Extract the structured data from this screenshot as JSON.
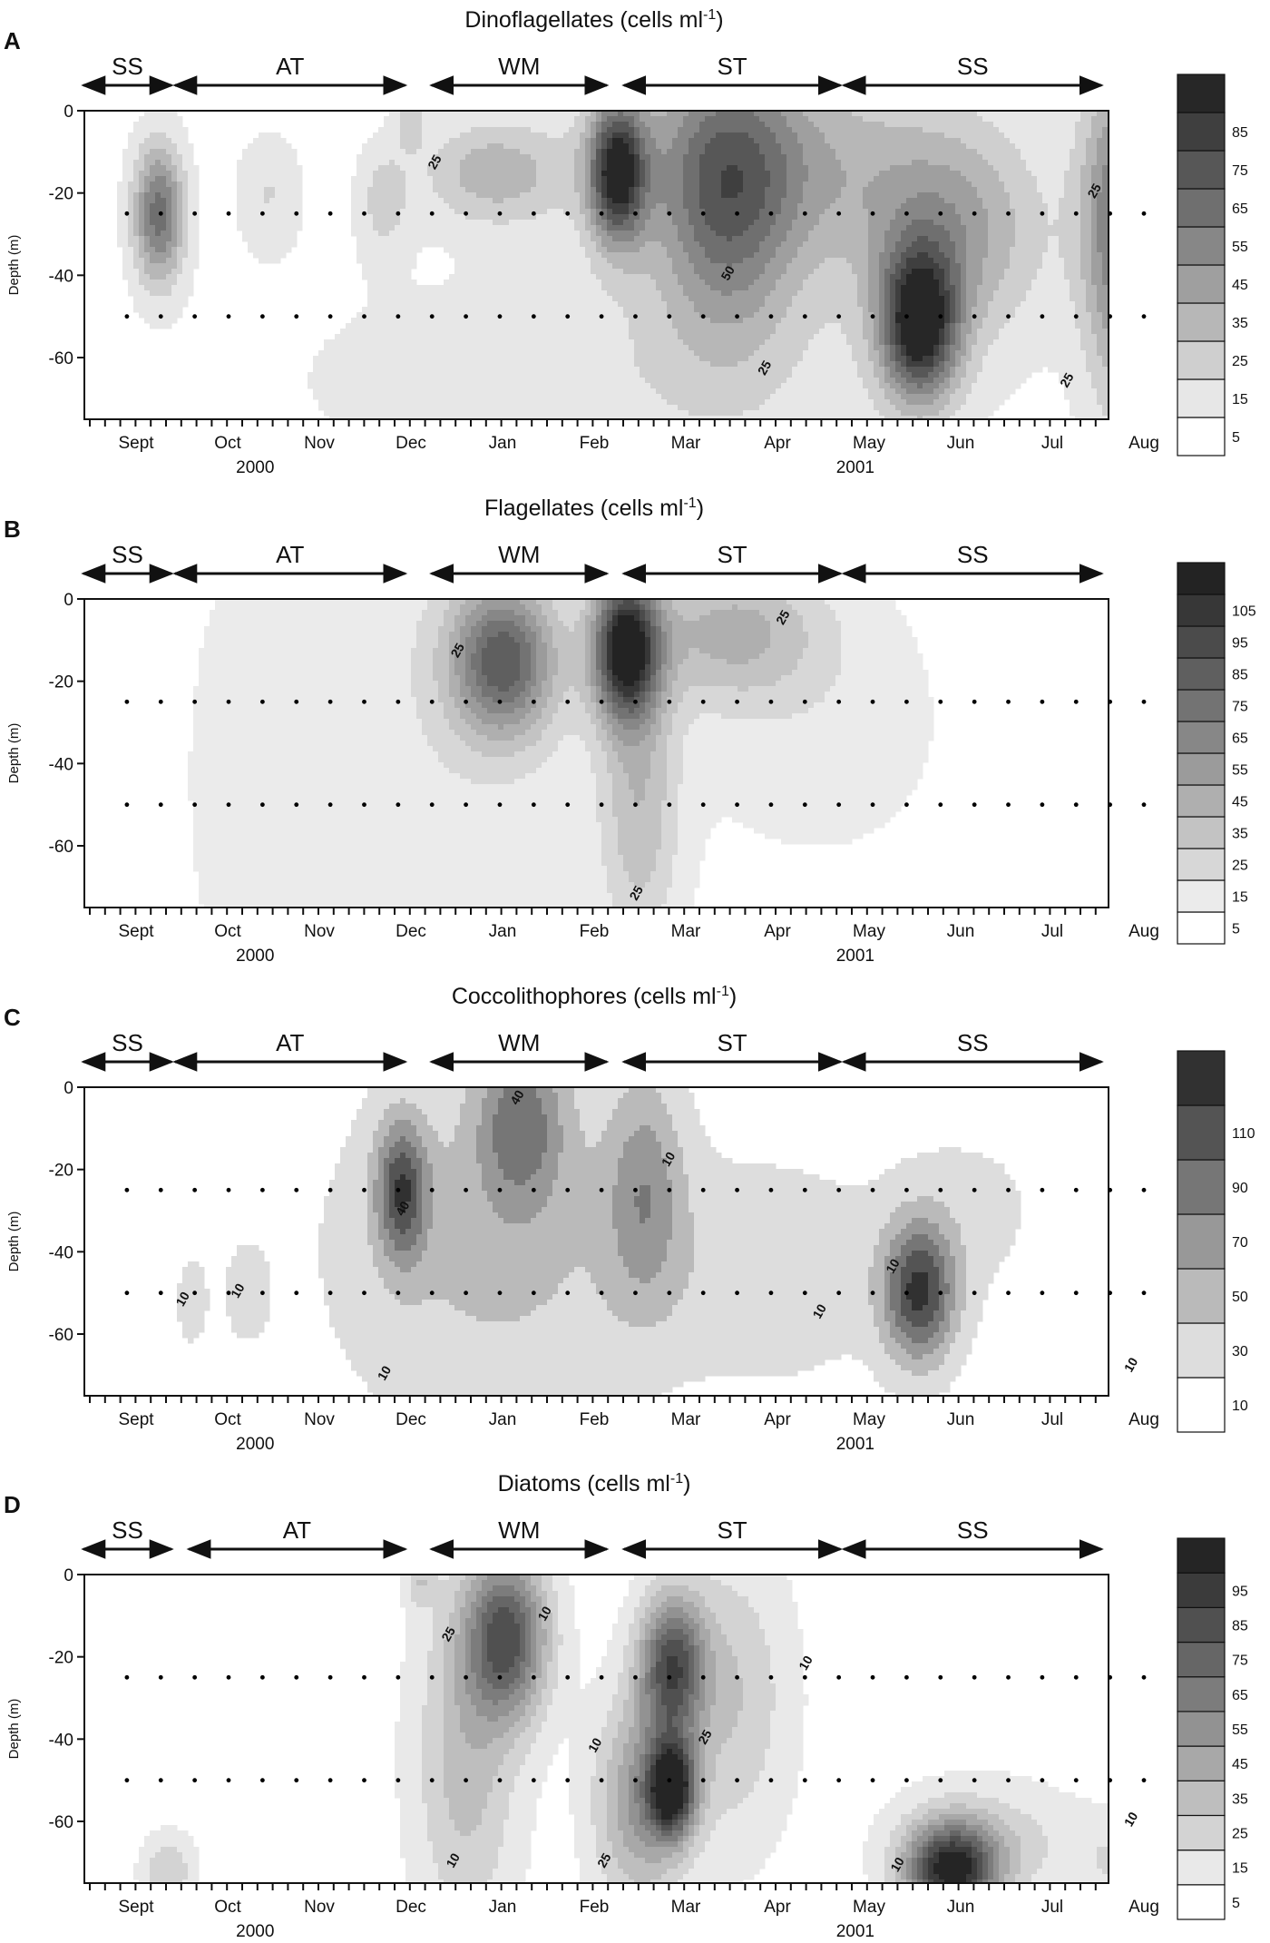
{
  "chart_data": [
    {
      "panel_letter": "A",
      "type": "heatmap",
      "title": "Dinoflagellates (cells ml",
      "title_sup": "-1",
      "title_end": ")",
      "ylabel": "Depth (m)",
      "ylim": [
        -75,
        0
      ],
      "y_ticks": [
        "0",
        "-20",
        "-40",
        "-60"
      ],
      "months": [
        "Sept",
        "Oct",
        "Nov",
        "Dec",
        "Jan",
        "Feb",
        "Mar",
        "Apr",
        "May",
        "Jun",
        "Jul",
        "Aug"
      ],
      "years": [
        "2000",
        "2001"
      ],
      "seasons": [
        {
          "label": "SS",
          "start": 0.0,
          "end": 1.0
        },
        {
          "label": "AT",
          "start": 1.0,
          "end": 3.55
        },
        {
          "label": "WM",
          "start": 3.8,
          "end": 5.75
        },
        {
          "label": "ST",
          "start": 5.9,
          "end": 8.3
        },
        {
          "label": "SS",
          "start": 8.3,
          "end": 11.15
        }
      ],
      "legend_levels": [
        "5",
        "15",
        "25",
        "35",
        "45",
        "55",
        "65",
        "75",
        "85"
      ],
      "legend_max": 95,
      "contour_labels": [
        {
          "text": "25",
          "x": 3.3,
          "y": -13
        },
        {
          "text": "50",
          "x": 6.5,
          "y": -40
        },
        {
          "text": "25",
          "x": 6.9,
          "y": -63
        },
        {
          "text": "25",
          "x": 10.2,
          "y": -66
        },
        {
          "text": "25",
          "x": 10.5,
          "y": -20
        }
      ],
      "sample_depths": [
        -25,
        -50
      ],
      "hotspots": [
        {
          "x": 0.25,
          "y": -25,
          "v": 60,
          "sx": 0.2,
          "sy": 12
        },
        {
          "x": 1.45,
          "y": -20,
          "v": 15,
          "sx": 0.25,
          "sy": 10
        },
        {
          "x": 2.7,
          "y": -22,
          "v": 18,
          "sx": 0.2,
          "sy": 10
        },
        {
          "x": 3.0,
          "y": -2,
          "v": 20,
          "sx": 0.12,
          "sy": 5
        },
        {
          "x": 3.9,
          "y": -15,
          "v": 30,
          "sx": 0.55,
          "sy": 9
        },
        {
          "x": 5.25,
          "y": -15,
          "v": 85,
          "sx": 0.22,
          "sy": 12
        },
        {
          "x": 6.45,
          "y": -22,
          "v": 50,
          "sx": 0.55,
          "sy": 25
        },
        {
          "x": 7.0,
          "y": -12,
          "v": 30,
          "sx": 1.3,
          "sy": 18
        },
        {
          "x": 8.55,
          "y": -52,
          "v": 90,
          "sx": 0.3,
          "sy": 13
        },
        {
          "x": 8.9,
          "y": -30,
          "v": 35,
          "sx": 0.7,
          "sy": 18
        },
        {
          "x": 10.7,
          "y": -25,
          "v": 40,
          "sx": 0.3,
          "sy": 25
        },
        {
          "x": 11.0,
          "y": -40,
          "v": 30,
          "sx": 0.35,
          "sy": 35
        },
        {
          "x": 5.2,
          "y": -65,
          "v": 12,
          "sx": 2.5,
          "sy": 20
        }
      ]
    },
    {
      "panel_letter": "B",
      "type": "heatmap",
      "title": "Flagellates (cells ml",
      "title_sup": "-1",
      "title_end": ")",
      "ylabel": "Depth (m)",
      "ylim": [
        -75,
        0
      ],
      "y_ticks": [
        "0",
        "-20",
        "-40",
        "-60"
      ],
      "months": [
        "Sept",
        "Oct",
        "Nov",
        "Dec",
        "Jan",
        "Feb",
        "Mar",
        "Apr",
        "May",
        "Jun",
        "Jul",
        "Aug"
      ],
      "years": [
        "2000",
        "2001"
      ],
      "seasons": [
        {
          "label": "SS",
          "start": 0.0,
          "end": 1.0
        },
        {
          "label": "AT",
          "start": 1.0,
          "end": 3.55
        },
        {
          "label": "WM",
          "start": 3.8,
          "end": 5.75
        },
        {
          "label": "ST",
          "start": 5.9,
          "end": 8.3
        },
        {
          "label": "SS",
          "start": 8.3,
          "end": 11.15
        }
      ],
      "legend_levels": [
        "5",
        "15",
        "25",
        "35",
        "45",
        "55",
        "65",
        "75",
        "85",
        "95",
        "105"
      ],
      "legend_max": 115,
      "contour_labels": [
        {
          "text": "25",
          "x": 3.55,
          "y": -13
        },
        {
          "text": "25",
          "x": 5.5,
          "y": -72
        },
        {
          "text": "25",
          "x": 7.1,
          "y": -5
        }
      ],
      "sample_depths": [
        -25,
        -50
      ],
      "hotspots": [
        {
          "x": 4.0,
          "y": -15,
          "v": 75,
          "sx": 0.4,
          "sy": 13
        },
        {
          "x": 5.35,
          "y": -12,
          "v": 110,
          "sx": 0.25,
          "sy": 12
        },
        {
          "x": 5.5,
          "y": -50,
          "v": 30,
          "sx": 0.3,
          "sy": 25
        },
        {
          "x": 6.5,
          "y": -8,
          "v": 35,
          "sx": 0.7,
          "sy": 12
        },
        {
          "x": 3.2,
          "y": -30,
          "v": 12,
          "sx": 1.5,
          "sy": 50
        },
        {
          "x": 1.2,
          "y": -50,
          "v": 8,
          "sx": 0.4,
          "sy": 35
        },
        {
          "x": 7.5,
          "y": -30,
          "v": 10,
          "sx": 1.0,
          "sy": 25
        }
      ]
    },
    {
      "panel_letter": "C",
      "type": "heatmap",
      "title": "Coccolithophores (cells ml",
      "title_sup": "-1",
      "title_end": ")",
      "ylabel": "Depth (m)",
      "ylim": [
        -75,
        0
      ],
      "y_ticks": [
        "0",
        "-20",
        "-40",
        "-60"
      ],
      "months": [
        "Sept",
        "Oct",
        "Nov",
        "Dec",
        "Jan",
        "Feb",
        "Mar",
        "Apr",
        "May",
        "Jun",
        "Jul",
        "Aug"
      ],
      "years": [
        "2000",
        "2001"
      ],
      "seasons": [
        {
          "label": "SS",
          "start": 0.0,
          "end": 1.0
        },
        {
          "label": "AT",
          "start": 1.0,
          "end": 3.55
        },
        {
          "label": "WM",
          "start": 3.8,
          "end": 5.75
        },
        {
          "label": "ST",
          "start": 5.9,
          "end": 8.3
        },
        {
          "label": "SS",
          "start": 8.3,
          "end": 11.15
        }
      ],
      "legend_levels": [
        "10",
        "30",
        "50",
        "70",
        "90",
        "110"
      ],
      "legend_max": 130,
      "contour_labels": [
        {
          "text": "10",
          "x": 0.55,
          "y": -52
        },
        {
          "text": "10",
          "x": 1.15,
          "y": -50
        },
        {
          "text": "10",
          "x": 2.75,
          "y": -70
        },
        {
          "text": "40",
          "x": 2.95,
          "y": -30
        },
        {
          "text": "40",
          "x": 4.2,
          "y": -3
        },
        {
          "text": "10",
          "x": 5.85,
          "y": -18
        },
        {
          "text": "10",
          "x": 7.5,
          "y": -55
        },
        {
          "text": "10",
          "x": 8.3,
          "y": -44
        },
        {
          "text": "10",
          "x": 10.9,
          "y": -68
        }
      ],
      "sample_depths": [
        -25,
        -50
      ],
      "hotspots": [
        {
          "x": 2.9,
          "y": -25,
          "v": 95,
          "sx": 0.2,
          "sy": 12
        },
        {
          "x": 4.2,
          "y": -8,
          "v": 70,
          "sx": 0.35,
          "sy": 15
        },
        {
          "x": 3.9,
          "y": -40,
          "v": 35,
          "sx": 1.2,
          "sy": 30
        },
        {
          "x": 5.55,
          "y": -25,
          "v": 55,
          "sx": 0.3,
          "sy": 20
        },
        {
          "x": 6.95,
          "y": -45,
          "v": 25,
          "sx": 0.9,
          "sy": 18
        },
        {
          "x": 8.55,
          "y": -50,
          "v": 110,
          "sx": 0.28,
          "sy": 12
        },
        {
          "x": 9.1,
          "y": -30,
          "v": 15,
          "sx": 0.6,
          "sy": 15
        },
        {
          "x": 0.6,
          "y": -52,
          "v": 15,
          "sx": 0.15,
          "sy": 10
        },
        {
          "x": 1.2,
          "y": -50,
          "v": 15,
          "sx": 0.2,
          "sy": 10
        }
      ]
    },
    {
      "panel_letter": "D",
      "type": "heatmap",
      "title": "Diatoms (cells ml",
      "title_sup": "-1",
      "title_end": ")",
      "ylabel": "Depth (m)",
      "ylim": [
        -75,
        0
      ],
      "y_ticks": [
        "0",
        "-20",
        "-40",
        "-60"
      ],
      "months": [
        "Sept",
        "Oct",
        "Nov",
        "Dec",
        "Jan",
        "Feb",
        "Mar",
        "Apr",
        "May",
        "Jun",
        "Jul",
        "Aug"
      ],
      "years": [
        "2000",
        "2001"
      ],
      "seasons": [
        {
          "label": "SS",
          "start": 0.0,
          "end": 1.0
        },
        {
          "label": "AT",
          "start": 1.15,
          "end": 3.55
        },
        {
          "label": "WM",
          "start": 3.8,
          "end": 5.75
        },
        {
          "label": "ST",
          "start": 5.9,
          "end": 8.3
        },
        {
          "label": "SS",
          "start": 8.3,
          "end": 11.15
        }
      ],
      "legend_levels": [
        "5",
        "15",
        "25",
        "35",
        "45",
        "55",
        "65",
        "75",
        "85",
        "95"
      ],
      "legend_max": 105,
      "contour_labels": [
        {
          "text": "10",
          "x": 3.5,
          "y": -70
        },
        {
          "text": "25",
          "x": 3.45,
          "y": -15
        },
        {
          "text": "10",
          "x": 4.5,
          "y": -10
        },
        {
          "text": "10",
          "x": 5.05,
          "y": -42
        },
        {
          "text": "25",
          "x": 5.15,
          "y": -70
        },
        {
          "text": "25",
          "x": 6.25,
          "y": -40
        },
        {
          "text": "10",
          "x": 7.35,
          "y": -22
        },
        {
          "text": "10",
          "x": 8.35,
          "y": -71
        },
        {
          "text": "10",
          "x": 10.9,
          "y": -60
        }
      ],
      "sample_depths": [
        -25,
        -50
      ],
      "hotspots": [
        {
          "x": 4.05,
          "y": -15,
          "v": 75,
          "sx": 0.32,
          "sy": 14
        },
        {
          "x": 3.6,
          "y": -45,
          "v": 30,
          "sx": 0.4,
          "sy": 30
        },
        {
          "x": 5.85,
          "y": -22,
          "v": 75,
          "sx": 0.25,
          "sy": 12
        },
        {
          "x": 5.85,
          "y": -52,
          "v": 95,
          "sx": 0.18,
          "sy": 8
        },
        {
          "x": 5.5,
          "y": -55,
          "v": 45,
          "sx": 0.35,
          "sy": 18
        },
        {
          "x": 6.5,
          "y": -30,
          "v": 25,
          "sx": 0.45,
          "sy": 25
        },
        {
          "x": 8.9,
          "y": -72,
          "v": 95,
          "sx": 0.35,
          "sy": 8
        },
        {
          "x": 9.3,
          "y": -65,
          "v": 20,
          "sx": 0.7,
          "sy": 10
        },
        {
          "x": 0.35,
          "y": -72,
          "v": 25,
          "sx": 0.2,
          "sy": 6
        },
        {
          "x": 10.8,
          "y": -70,
          "v": 15,
          "sx": 0.4,
          "sy": 8
        },
        {
          "x": 3.1,
          "y": -2,
          "v": 20,
          "sx": 0.12,
          "sy": 4
        }
      ]
    }
  ]
}
